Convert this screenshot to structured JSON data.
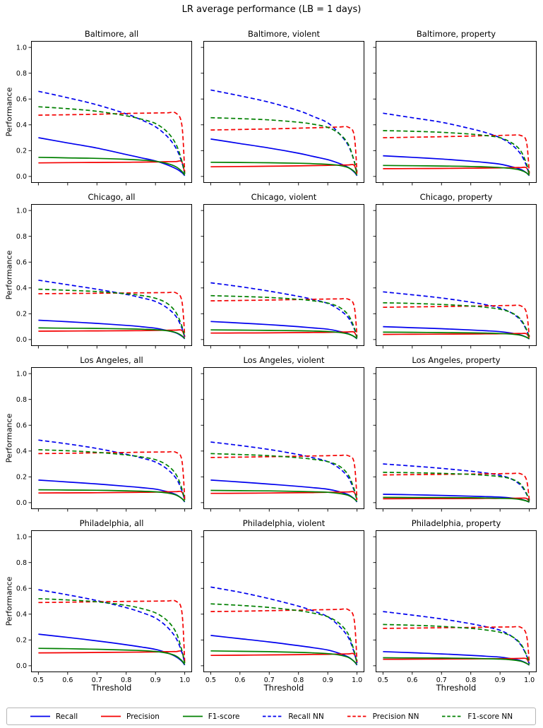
{
  "figure_title": "LR average performance (LB = 1 days)",
  "chart_data": {
    "type": "line",
    "x_label": "Threshold",
    "y_label": "Performance",
    "x_ticks": [
      "0.5",
      "0.6",
      "0.7",
      "0.8",
      "0.9",
      "1.0"
    ],
    "x_tick_vals": [
      0.5,
      0.6,
      0.7,
      0.8,
      0.9,
      1.0
    ],
    "y_ticks": [
      "0.0",
      "0.2",
      "0.4",
      "0.6",
      "0.8",
      "1.0"
    ],
    "y_tick_vals": [
      0.0,
      0.2,
      0.4,
      0.6,
      0.8,
      1.0
    ],
    "xlim": [
      0.475,
      1.025
    ],
    "ylim": [
      -0.05,
      1.05
    ],
    "grid": false,
    "legend_position": "bottom",
    "x": [
      0.5,
      0.6,
      0.7,
      0.8,
      0.85,
      0.9,
      0.94,
      0.97,
      0.99,
      1.0
    ],
    "series_keys": [
      "recall",
      "precision",
      "f1",
      "recall_nn",
      "precision_nn",
      "f1_nn"
    ],
    "series_styles": {
      "recall": {
        "label": "Recall",
        "color": "#0000ee",
        "dash": false
      },
      "precision": {
        "label": "Precision",
        "color": "#f40000",
        "dash": false
      },
      "f1": {
        "label": "F1-score",
        "color": "#008000",
        "dash": false
      },
      "recall_nn": {
        "label": "Recall NN",
        "color": "#0000ee",
        "dash": true
      },
      "precision_nn": {
        "label": "Precision NN",
        "color": "#f40000",
        "dash": true
      },
      "f1_nn": {
        "label": "F1-score NN",
        "color": "#008000",
        "dash": true
      }
    },
    "subplots": [
      {
        "title": "Baltimore, all",
        "series": {
          "recall": [
            0.3,
            0.26,
            0.22,
            0.17,
            0.145,
            0.12,
            0.09,
            0.06,
            0.03,
            0.005
          ],
          "precision": [
            0.105,
            0.107,
            0.108,
            0.11,
            0.111,
            0.112,
            0.114,
            0.115,
            0.113,
            0.02
          ],
          "f1": [
            0.148,
            0.144,
            0.14,
            0.133,
            0.127,
            0.118,
            0.1,
            0.075,
            0.04,
            0.01
          ],
          "recall_nn": [
            0.66,
            0.61,
            0.555,
            0.485,
            0.44,
            0.385,
            0.31,
            0.22,
            0.11,
            0.02
          ],
          "precision_nn": [
            0.475,
            0.478,
            0.482,
            0.488,
            0.49,
            0.492,
            0.493,
            0.49,
            0.4,
            0.03
          ],
          "f1_nn": [
            0.54,
            0.525,
            0.505,
            0.47,
            0.445,
            0.41,
            0.345,
            0.25,
            0.12,
            0.02
          ]
        }
      },
      {
        "title": "Baltimore, violent",
        "series": {
          "recall": [
            0.29,
            0.255,
            0.22,
            0.18,
            0.155,
            0.13,
            0.1,
            0.07,
            0.035,
            0.005
          ],
          "precision": [
            0.075,
            0.077,
            0.079,
            0.082,
            0.084,
            0.086,
            0.088,
            0.089,
            0.087,
            0.02
          ],
          "f1": [
            0.11,
            0.108,
            0.106,
            0.102,
            0.099,
            0.094,
            0.085,
            0.068,
            0.04,
            0.01
          ],
          "recall_nn": [
            0.67,
            0.625,
            0.575,
            0.51,
            0.465,
            0.415,
            0.33,
            0.24,
            0.12,
            0.02
          ],
          "precision_nn": [
            0.36,
            0.364,
            0.368,
            0.374,
            0.377,
            0.38,
            0.383,
            0.382,
            0.32,
            0.03
          ],
          "f1_nn": [
            0.455,
            0.448,
            0.438,
            0.42,
            0.405,
            0.38,
            0.33,
            0.25,
            0.12,
            0.02
          ]
        }
      },
      {
        "title": "Baltimore, property",
        "series": {
          "recall": [
            0.16,
            0.148,
            0.135,
            0.118,
            0.108,
            0.095,
            0.075,
            0.055,
            0.028,
            0.005
          ],
          "precision": [
            0.06,
            0.061,
            0.062,
            0.064,
            0.065,
            0.066,
            0.068,
            0.069,
            0.067,
            0.015
          ],
          "f1": [
            0.085,
            0.083,
            0.081,
            0.077,
            0.074,
            0.069,
            0.061,
            0.048,
            0.028,
            0.008
          ],
          "recall_nn": [
            0.49,
            0.455,
            0.42,
            0.37,
            0.34,
            0.3,
            0.245,
            0.175,
            0.085,
            0.015
          ],
          "precision_nn": [
            0.3,
            0.304,
            0.308,
            0.313,
            0.316,
            0.318,
            0.32,
            0.318,
            0.27,
            0.025
          ],
          "f1_nn": [
            0.355,
            0.35,
            0.342,
            0.328,
            0.317,
            0.3,
            0.26,
            0.2,
            0.1,
            0.015
          ]
        }
      },
      {
        "title": "Chicago, all",
        "series": {
          "recall": [
            0.15,
            0.138,
            0.125,
            0.11,
            0.1,
            0.088,
            0.07,
            0.052,
            0.026,
            0.005
          ],
          "precision": [
            0.065,
            0.066,
            0.067,
            0.068,
            0.069,
            0.071,
            0.072,
            0.073,
            0.071,
            0.018
          ],
          "f1": [
            0.09,
            0.088,
            0.086,
            0.083,
            0.08,
            0.076,
            0.068,
            0.054,
            0.03,
            0.008
          ],
          "recall_nn": [
            0.46,
            0.425,
            0.39,
            0.35,
            0.325,
            0.295,
            0.245,
            0.18,
            0.09,
            0.02
          ],
          "precision_nn": [
            0.355,
            0.357,
            0.359,
            0.361,
            0.362,
            0.363,
            0.364,
            0.362,
            0.3,
            0.025
          ],
          "f1_nn": [
            0.39,
            0.382,
            0.372,
            0.355,
            0.342,
            0.32,
            0.28,
            0.21,
            0.105,
            0.02
          ]
        }
      },
      {
        "title": "Chicago, violent",
        "series": {
          "recall": [
            0.14,
            0.128,
            0.115,
            0.1,
            0.09,
            0.08,
            0.063,
            0.046,
            0.023,
            0.005
          ],
          "precision": [
            0.05,
            0.051,
            0.052,
            0.054,
            0.055,
            0.056,
            0.058,
            0.059,
            0.057,
            0.015
          ],
          "f1": [
            0.075,
            0.073,
            0.071,
            0.068,
            0.066,
            0.062,
            0.055,
            0.043,
            0.024,
            0.007
          ],
          "recall_nn": [
            0.44,
            0.41,
            0.375,
            0.335,
            0.31,
            0.28,
            0.23,
            0.17,
            0.085,
            0.015
          ],
          "precision_nn": [
            0.3,
            0.303,
            0.306,
            0.31,
            0.312,
            0.314,
            0.315,
            0.313,
            0.26,
            0.025
          ],
          "f1_nn": [
            0.34,
            0.334,
            0.326,
            0.312,
            0.3,
            0.283,
            0.25,
            0.19,
            0.095,
            0.015
          ]
        }
      },
      {
        "title": "Chicago, property",
        "series": {
          "recall": [
            0.1,
            0.092,
            0.084,
            0.074,
            0.068,
            0.061,
            0.049,
            0.036,
            0.018,
            0.004
          ],
          "precision": [
            0.04,
            0.041,
            0.042,
            0.043,
            0.044,
            0.045,
            0.046,
            0.047,
            0.045,
            0.012
          ],
          "f1": [
            0.057,
            0.056,
            0.054,
            0.052,
            0.05,
            0.047,
            0.042,
            0.033,
            0.018,
            0.006
          ],
          "recall_nn": [
            0.37,
            0.347,
            0.322,
            0.29,
            0.27,
            0.245,
            0.205,
            0.15,
            0.075,
            0.015
          ],
          "precision_nn": [
            0.25,
            0.253,
            0.256,
            0.259,
            0.261,
            0.263,
            0.264,
            0.262,
            0.21,
            0.02
          ],
          "f1_nn": [
            0.285,
            0.28,
            0.272,
            0.26,
            0.25,
            0.235,
            0.207,
            0.158,
            0.08,
            0.015
          ]
        }
      },
      {
        "title": "Los Angeles, all",
        "series": {
          "recall": [
            0.175,
            0.16,
            0.145,
            0.127,
            0.117,
            0.105,
            0.085,
            0.063,
            0.032,
            0.005
          ],
          "precision": [
            0.075,
            0.076,
            0.077,
            0.079,
            0.08,
            0.082,
            0.084,
            0.085,
            0.083,
            0.02
          ],
          "f1": [
            0.1,
            0.098,
            0.096,
            0.092,
            0.089,
            0.084,
            0.075,
            0.059,
            0.032,
            0.009
          ],
          "recall_nn": [
            0.485,
            0.455,
            0.42,
            0.375,
            0.348,
            0.315,
            0.26,
            0.19,
            0.095,
            0.02
          ],
          "precision_nn": [
            0.38,
            0.383,
            0.386,
            0.389,
            0.391,
            0.392,
            0.393,
            0.39,
            0.33,
            0.03
          ],
          "f1_nn": [
            0.41,
            0.402,
            0.39,
            0.37,
            0.355,
            0.333,
            0.29,
            0.22,
            0.11,
            0.02
          ]
        }
      },
      {
        "title": "Los Angeles, violent",
        "series": {
          "recall": [
            0.175,
            0.16,
            0.144,
            0.126,
            0.116,
            0.104,
            0.084,
            0.062,
            0.031,
            0.005
          ],
          "precision": [
            0.072,
            0.073,
            0.075,
            0.077,
            0.078,
            0.08,
            0.082,
            0.083,
            0.081,
            0.02
          ],
          "f1": [
            0.095,
            0.093,
            0.091,
            0.087,
            0.084,
            0.08,
            0.071,
            0.056,
            0.03,
            0.009
          ],
          "recall_nn": [
            0.47,
            0.443,
            0.412,
            0.373,
            0.348,
            0.318,
            0.265,
            0.195,
            0.095,
            0.02
          ],
          "precision_nn": [
            0.35,
            0.353,
            0.356,
            0.36,
            0.362,
            0.364,
            0.366,
            0.364,
            0.31,
            0.03
          ],
          "f1_nn": [
            0.38,
            0.373,
            0.364,
            0.348,
            0.336,
            0.318,
            0.283,
            0.215,
            0.105,
            0.02
          ]
        }
      },
      {
        "title": "Los Angeles, property",
        "series": {
          "recall": [
            0.065,
            0.061,
            0.056,
            0.05,
            0.047,
            0.043,
            0.036,
            0.027,
            0.014,
            0.003
          ],
          "precision": [
            0.03,
            0.031,
            0.031,
            0.032,
            0.033,
            0.033,
            0.034,
            0.035,
            0.033,
            0.009
          ],
          "f1": [
            0.041,
            0.04,
            0.039,
            0.038,
            0.036,
            0.034,
            0.031,
            0.024,
            0.013,
            0.005
          ],
          "recall_nn": [
            0.3,
            0.284,
            0.266,
            0.244,
            0.23,
            0.212,
            0.182,
            0.135,
            0.068,
            0.013
          ],
          "precision_nn": [
            0.215,
            0.217,
            0.219,
            0.222,
            0.223,
            0.225,
            0.226,
            0.224,
            0.18,
            0.02
          ],
          "f1_nn": [
            0.235,
            0.232,
            0.227,
            0.219,
            0.212,
            0.202,
            0.183,
            0.145,
            0.073,
            0.013
          ]
        }
      },
      {
        "title": "Philadelphia, all",
        "series": {
          "recall": [
            0.245,
            0.22,
            0.193,
            0.163,
            0.146,
            0.127,
            0.1,
            0.07,
            0.035,
            0.005
          ],
          "precision": [
            0.1,
            0.101,
            0.103,
            0.105,
            0.106,
            0.107,
            0.109,
            0.11,
            0.108,
            0.02
          ],
          "f1": [
            0.135,
            0.132,
            0.128,
            0.122,
            0.118,
            0.111,
            0.098,
            0.076,
            0.04,
            0.01
          ],
          "recall_nn": [
            0.59,
            0.55,
            0.505,
            0.45,
            0.415,
            0.37,
            0.3,
            0.215,
            0.105,
            0.02
          ],
          "precision_nn": [
            0.49,
            0.493,
            0.496,
            0.499,
            0.5,
            0.501,
            0.502,
            0.5,
            0.42,
            0.03
          ],
          "f1_nn": [
            0.52,
            0.51,
            0.496,
            0.468,
            0.445,
            0.41,
            0.35,
            0.26,
            0.12,
            0.02
          ]
        }
      },
      {
        "title": "Philadelphia, violent",
        "series": {
          "recall": [
            0.235,
            0.21,
            0.185,
            0.156,
            0.14,
            0.122,
            0.096,
            0.068,
            0.034,
            0.005
          ],
          "precision": [
            0.08,
            0.082,
            0.084,
            0.086,
            0.088,
            0.089,
            0.091,
            0.092,
            0.09,
            0.02
          ],
          "f1": [
            0.115,
            0.112,
            0.109,
            0.104,
            0.1,
            0.094,
            0.083,
            0.065,
            0.034,
            0.009
          ],
          "recall_nn": [
            0.61,
            0.57,
            0.52,
            0.462,
            0.425,
            0.38,
            0.305,
            0.22,
            0.105,
            0.02
          ],
          "precision_nn": [
            0.42,
            0.423,
            0.427,
            0.431,
            0.433,
            0.435,
            0.437,
            0.435,
            0.36,
            0.03
          ],
          "f1_nn": [
            0.48,
            0.468,
            0.452,
            0.427,
            0.408,
            0.38,
            0.327,
            0.245,
            0.115,
            0.02
          ]
        }
      },
      {
        "title": "Philadelphia, property",
        "series": {
          "recall": [
            0.11,
            0.101,
            0.092,
            0.081,
            0.074,
            0.067,
            0.054,
            0.04,
            0.02,
            0.004
          ],
          "precision": [
            0.05,
            0.051,
            0.052,
            0.053,
            0.054,
            0.055,
            0.056,
            0.057,
            0.055,
            0.014
          ],
          "f1": [
            0.062,
            0.061,
            0.06,
            0.057,
            0.055,
            0.052,
            0.046,
            0.036,
            0.019,
            0.006
          ],
          "recall_nn": [
            0.42,
            0.393,
            0.363,
            0.326,
            0.303,
            0.275,
            0.228,
            0.165,
            0.08,
            0.015
          ],
          "precision_nn": [
            0.29,
            0.292,
            0.295,
            0.297,
            0.299,
            0.3,
            0.301,
            0.299,
            0.24,
            0.025
          ],
          "f1_nn": [
            0.32,
            0.314,
            0.305,
            0.29,
            0.278,
            0.26,
            0.228,
            0.172,
            0.085,
            0.015
          ]
        }
      }
    ]
  }
}
